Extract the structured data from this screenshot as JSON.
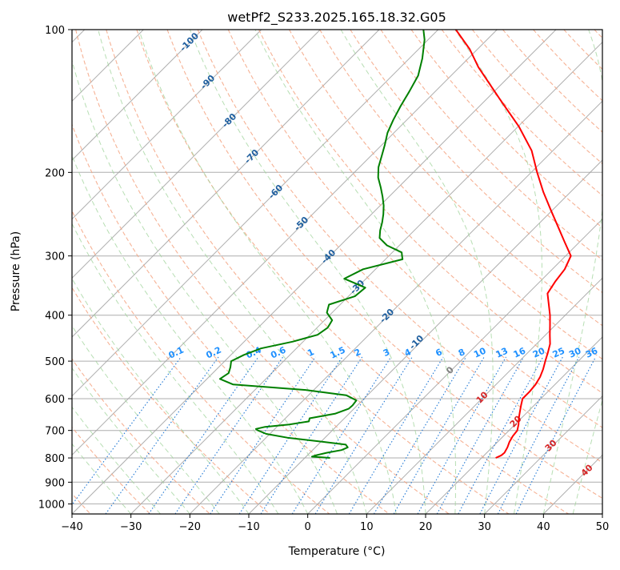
{
  "chart_data": {
    "type": "line",
    "title": "wetPf2_S233.2025.165.18.32.G05",
    "xlabel": "Temperature (°C)",
    "ylabel": "Pressure (hPa)",
    "xlim": [
      -40,
      50
    ],
    "ylim": [
      1050,
      100
    ],
    "y_scale": "log",
    "x_ticks": [
      -40,
      -30,
      -20,
      -10,
      0,
      10,
      20,
      30,
      40,
      50
    ],
    "y_ticks": [
      100,
      200,
      300,
      400,
      500,
      600,
      700,
      800,
      900,
      1000
    ],
    "grid": true,
    "skew": true,
    "series": [
      {
        "key": "temperature",
        "color": "#ff0000",
        "pressure": [
          800,
          790,
          780,
          760,
          740,
          720,
          700,
          680,
          660,
          640,
          620,
          600,
          580,
          560,
          540,
          520,
          500,
          480,
          460,
          440,
          420,
          400,
          380,
          360,
          340,
          320,
          300,
          280,
          260,
          240,
          220,
          200,
          180,
          160,
          140,
          120,
          110,
          100
        ],
        "values": [
          22.4,
          22.9,
          23.0,
          22.6,
          22.0,
          21.6,
          21.4,
          20.6,
          19.6,
          18.7,
          17.8,
          16.9,
          16.9,
          16.7,
          16.2,
          15.4,
          14.4,
          13.4,
          12.3,
          10.7,
          9.1,
          7.4,
          5.4,
          3.3,
          2.6,
          2.1,
          0.9,
          -2.6,
          -6.3,
          -10.3,
          -14.6,
          -19.0,
          -23.6,
          -29.9,
          -37.8,
          -46.8,
          -51.3,
          -57.0
        ]
      },
      {
        "key": "dewpoint",
        "color": "#008000",
        "pressure": [
          800,
          795,
          790,
          780,
          770,
          760,
          750,
          740,
          725,
          712,
          700,
          695,
          688,
          680,
          670,
          660,
          645,
          630,
          620,
          605,
          590,
          575,
          560,
          545,
          530,
          515,
          500,
          485,
          470,
          455,
          440,
          425,
          410,
          395,
          380,
          365,
          350,
          335,
          320,
          305,
          295,
          285,
          275,
          265,
          255,
          245,
          235,
          225,
          215,
          205,
          195,
          185,
          175,
          165,
          155,
          145,
          135,
          125,
          115,
          105,
          100
        ],
        "values": [
          -5.7,
          -9.0,
          -8.6,
          -7.1,
          -5.1,
          -4.5,
          -5.3,
          -9.5,
          -16.4,
          -20.6,
          -22.6,
          -23.2,
          -22.0,
          -18.3,
          -15.5,
          -15.9,
          -12.3,
          -10.9,
          -10.8,
          -11.0,
          -13.6,
          -21.4,
          -34.6,
          -37.8,
          -37.3,
          -38.0,
          -38.9,
          -37.8,
          -36.0,
          -31.8,
          -28.7,
          -28.2,
          -28.7,
          -30.9,
          -31.9,
          -28.9,
          -28.6,
          -33.7,
          -32.1,
          -27.1,
          -28.4,
          -32.1,
          -34.6,
          -35.8,
          -36.8,
          -38.0,
          -39.4,
          -41.1,
          -43.0,
          -45.1,
          -46.8,
          -48.1,
          -49.5,
          -51.1,
          -52.3,
          -53.4,
          -54.4,
          -55.6,
          -57.8,
          -60.6,
          -62.5
        ]
      }
    ],
    "dry_adiabat_labels": [
      "-100",
      "-90",
      "-80",
      "-70",
      "-60",
      "-50",
      "-40",
      "-30",
      "-20",
      "-10"
    ],
    "moist_adiabat_labels": [
      "0",
      "10",
      "20",
      "30",
      "40"
    ],
    "mixing_ratio_labels": [
      "0.1",
      "0.2",
      "0.4",
      "0.6",
      "1",
      "1.5",
      "2",
      "3",
      "4",
      "6",
      "8",
      "10",
      "13",
      "16",
      "20",
      "25",
      "30",
      "36"
    ],
    "colors": {
      "temperature": "#ff0000",
      "dewpoint": "#008000",
      "isotherm": "#a0a0a0",
      "dry_adiabat": "#f4a582",
      "moist_adiabat": "#9fd39a",
      "mixing_ratio": "#1f77d4",
      "dry_label": "#1f5f9f",
      "moist_label": "#d62728",
      "mix_label": "#1e90ff"
    }
  }
}
